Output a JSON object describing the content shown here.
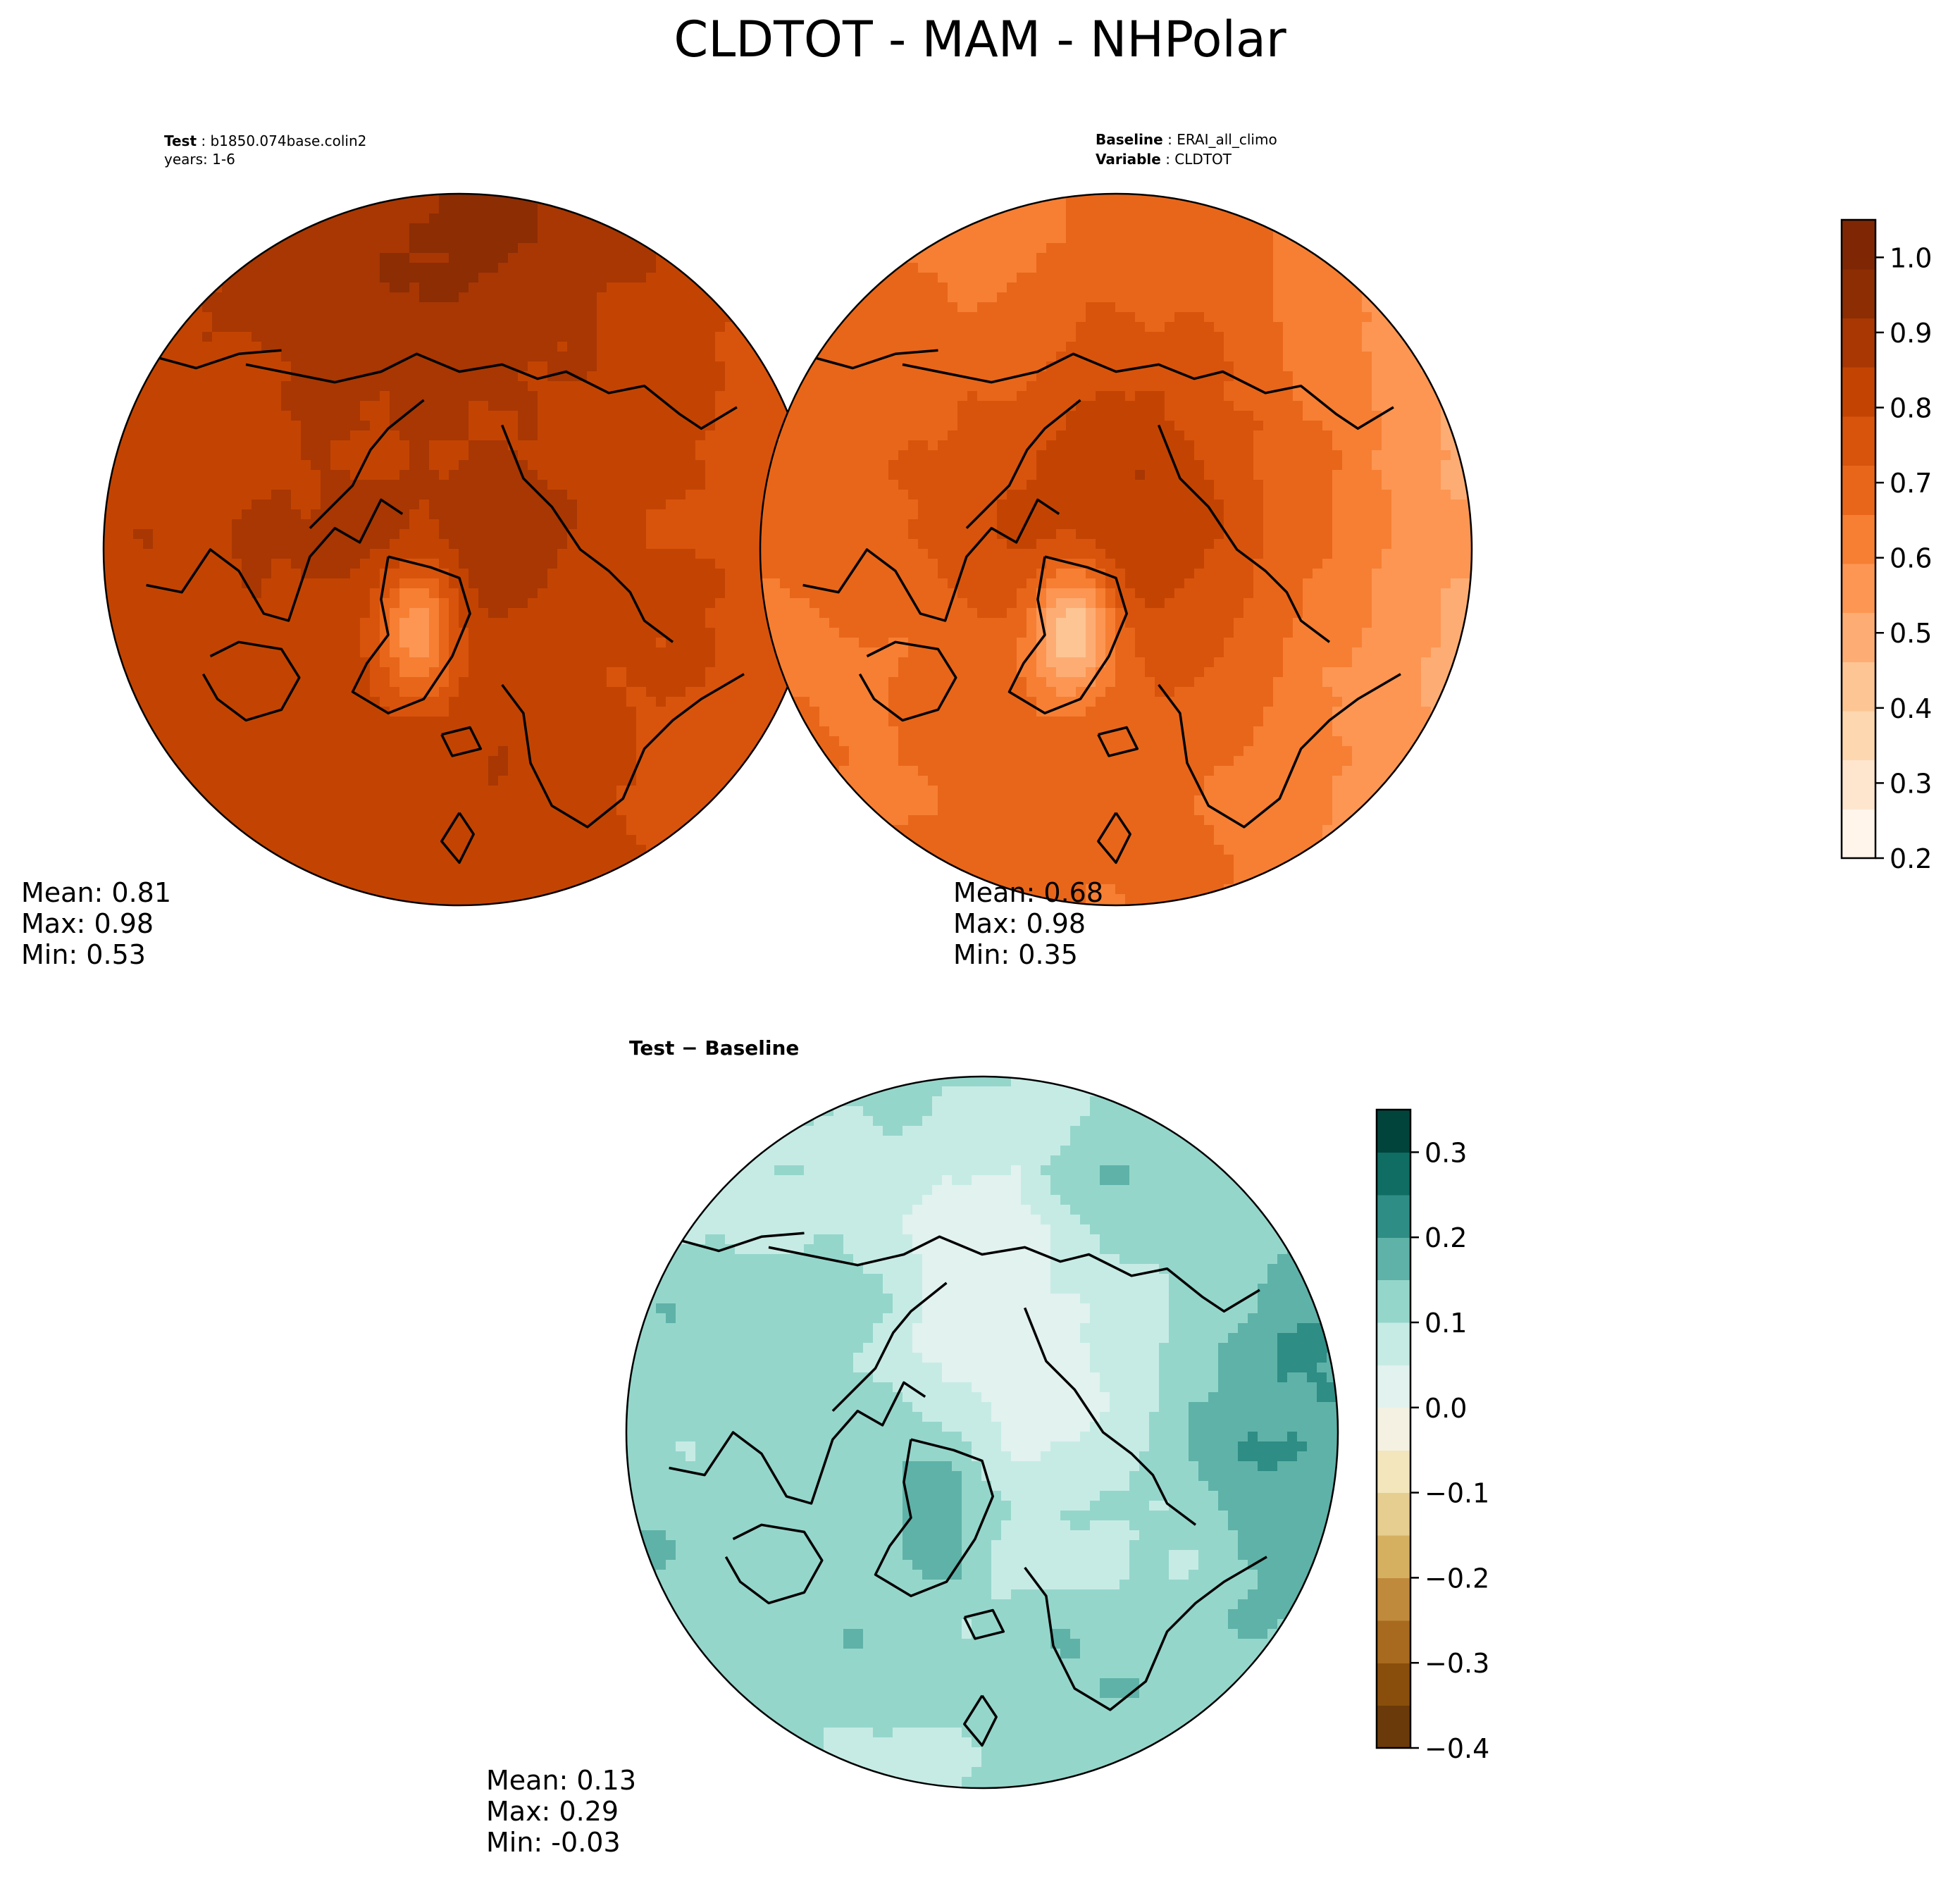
{
  "title": "CLDTOT - MAM - NHPolar",
  "panels": [
    {
      "id": "test",
      "label_key": "Test",
      "label_value": "b1850.074base.colin2",
      "line2": "years: 1-6",
      "line2_key": "",
      "line2_value": "",
      "stats": {
        "mean": "Mean:  0.81",
        "max": "Max:  0.98",
        "min": "Min:  0.53"
      },
      "colormap": "Oranges",
      "field_mean": 0.81
    },
    {
      "id": "baseline",
      "label_key": "Baseline",
      "label_value": "ERAI_all_climo",
      "line2": "",
      "line2_key": "Variable",
      "line2_value": "CLDTOT",
      "stats": {
        "mean": "Mean:  0.68",
        "max": "Max:  0.98",
        "min": "Min:  0.35"
      },
      "colormap": "Oranges",
      "field_mean": 0.68
    },
    {
      "id": "diff",
      "label_key": "Test",
      "label_value": "Baseline",
      "line2": "",
      "line2_key": "",
      "line2_value": "",
      "stats": {
        "mean": "Mean:  0.13",
        "max": "Max:  0.29",
        "min": "Min: -0.03"
      },
      "colormap": "BrBG",
      "field_mean": 0.13
    }
  ],
  "chart_data": [
    {
      "type": "heatmap",
      "projection": "north polar stereographic",
      "panel": "Test",
      "stats": {
        "mean": 0.81,
        "max": 0.98,
        "min": 0.53
      }
    },
    {
      "type": "heatmap",
      "projection": "north polar stereographic",
      "panel": "Baseline",
      "stats": {
        "mean": 0.68,
        "max": 0.98,
        "min": 0.35
      }
    },
    {
      "type": "heatmap",
      "projection": "north polar stereographic",
      "panel": "Test - Baseline",
      "stats": {
        "mean": 0.13,
        "max": 0.29,
        "min": -0.03
      }
    }
  ],
  "colorbars": [
    {
      "id": "main",
      "range": [
        0.2,
        1.05
      ],
      "ticks": [
        0.2,
        0.3,
        0.4,
        0.5,
        0.6,
        0.7,
        0.8,
        0.9,
        1.0
      ],
      "tick_labels": [
        "0.2",
        "0.3",
        "0.4",
        "0.5",
        "0.6",
        "0.7",
        "0.8",
        "0.9",
        "1.0"
      ],
      "colors": [
        "#fff5eb",
        "#fee6ce",
        "#fdd7b0",
        "#fdc593",
        "#fdad74",
        "#fd9653",
        "#f67f33",
        "#e8661a",
        "#d8540c",
        "#c34402",
        "#a83703",
        "#8c2d04",
        "#7f2704"
      ]
    },
    {
      "id": "diff",
      "range": [
        -0.4,
        0.35
      ],
      "ticks": [
        -0.4,
        -0.3,
        -0.2,
        -0.1,
        0.0,
        0.1,
        0.2,
        0.3
      ],
      "tick_labels": [
        "−0.4",
        "−0.3",
        "−0.2",
        "−0.1",
        "0.0",
        "0.1",
        "0.2",
        "0.3"
      ],
      "colors": [
        "#6b3a0a",
        "#8a4e0c",
        "#a76a1e",
        "#c08a3c",
        "#d6b061",
        "#e6cd90",
        "#f3e6bd",
        "#f5f1e2",
        "#e2f2ef",
        "#c6ebe5",
        "#95d6cb",
        "#5fb2a8",
        "#2e8d85",
        "#0f6d63",
        "#01443c"
      ]
    }
  ]
}
